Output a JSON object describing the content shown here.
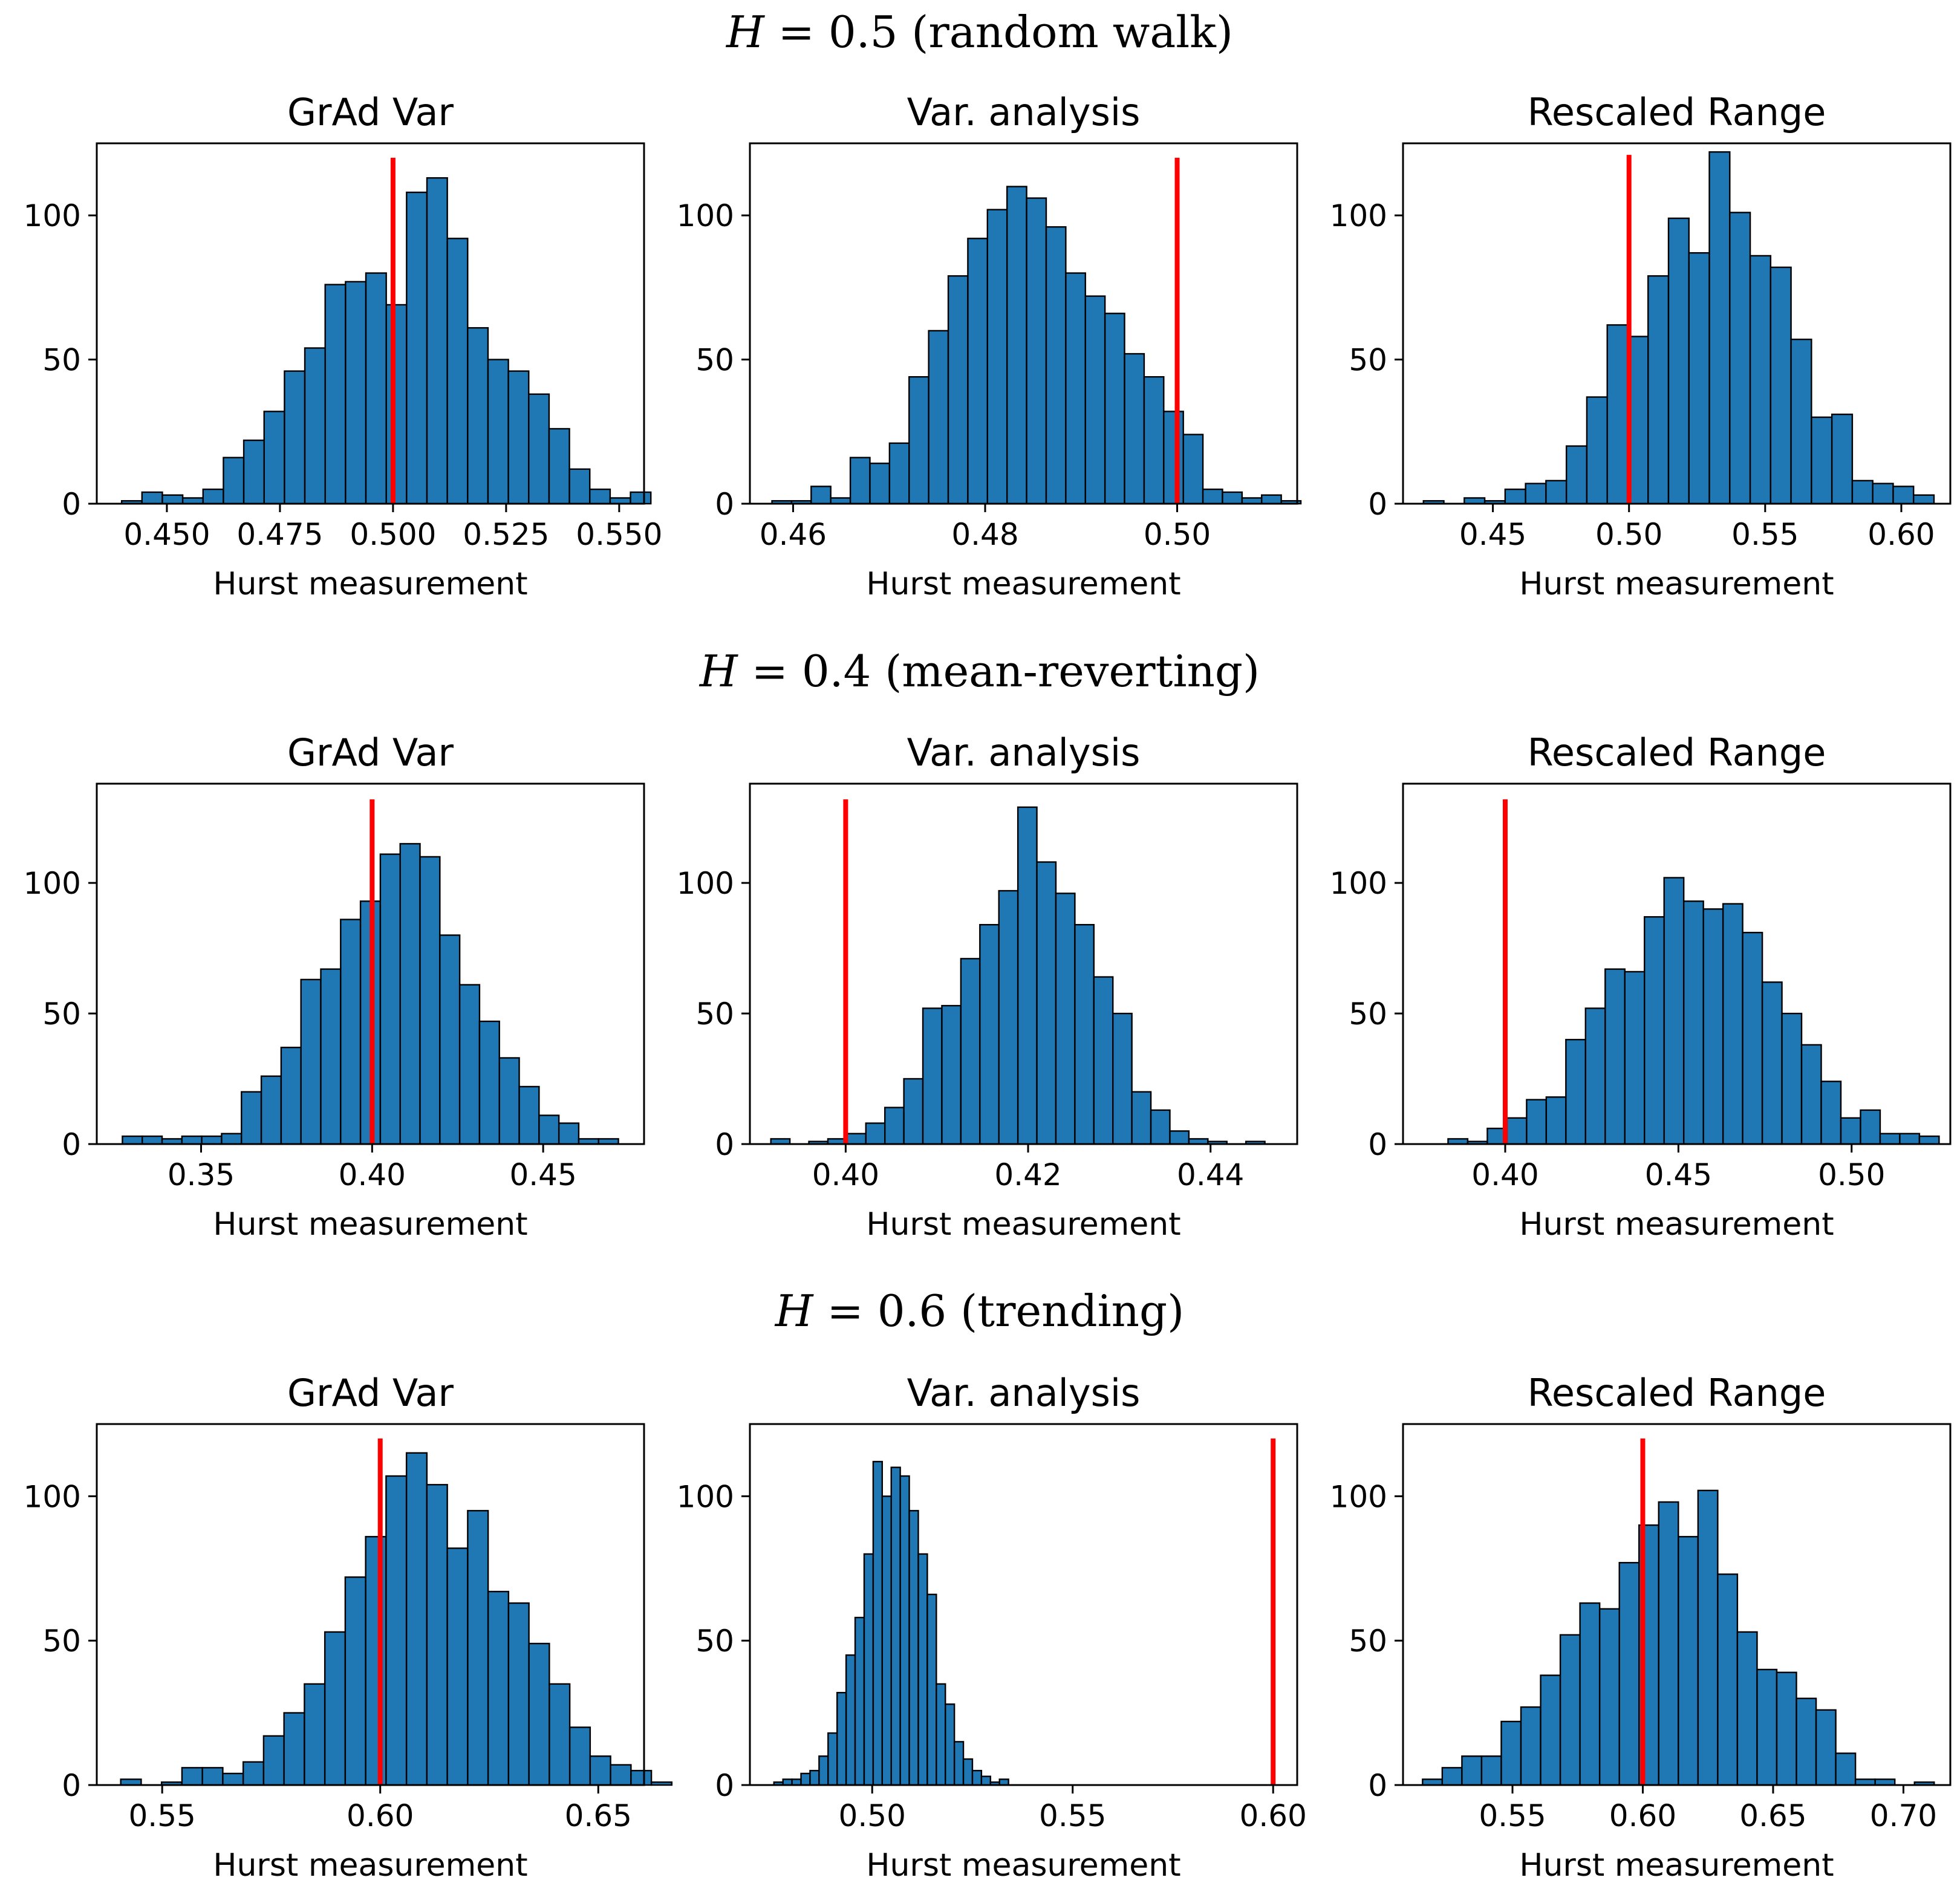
{
  "colors": {
    "bar_fill": "#1f77b4",
    "bar_edge": "#000000",
    "true_line": "#ff0000"
  },
  "rows": [
    {
      "title": "H = 0.5 (random walk)",
      "h_symbol": "H",
      "h_rest": " = 0.5 (random walk)"
    },
    {
      "title": "H = 0.4 (mean-reverting)",
      "h_symbol": "H",
      "h_rest": " = 0.4 (mean-reverting)"
    },
    {
      "title": "H = 0.6 (trending)",
      "h_symbol": "H",
      "h_rest": " = 0.6 (trending)"
    }
  ],
  "chart_data": [
    {
      "type": "bar",
      "title": "GrAd Var",
      "xlabel": "Hurst measurement",
      "ylabel": "",
      "row": 0,
      "col": 0,
      "xlim": [
        0.4345,
        0.5555
      ],
      "ylim": [
        0,
        125
      ],
      "xticks": [
        0.45,
        0.475,
        0.5,
        0.525,
        0.55
      ],
      "xtick_labels": [
        "0.450",
        "0.475",
        "0.500",
        "0.525",
        "0.550"
      ],
      "yticks": [
        0,
        50,
        100
      ],
      "ytick_labels": [
        "0",
        "50",
        "100"
      ],
      "true_h": 0.5,
      "true_line_top": 120,
      "bin_start": 0.44,
      "bin_width": 0.0045,
      "values": [
        1,
        4,
        3,
        2,
        5,
        16,
        22,
        32,
        46,
        54,
        76,
        77,
        80,
        69,
        108,
        113,
        92,
        61,
        50,
        46,
        38,
        26,
        12,
        5,
        2,
        4
      ]
    },
    {
      "type": "bar",
      "title": "Var. analysis",
      "xlabel": "Hurst measurement",
      "ylabel": "",
      "row": 0,
      "col": 1,
      "xlim": [
        0.4555,
        0.5125
      ],
      "ylim": [
        0,
        125
      ],
      "xticks": [
        0.46,
        0.48,
        0.5
      ],
      "xtick_labels": [
        "0.46",
        "0.48",
        "0.50"
      ],
      "yticks": [
        0,
        50,
        100
      ],
      "ytick_labels": [
        "0",
        "50",
        "100"
      ],
      "true_h": 0.5,
      "true_line_top": 120,
      "bin_start": 0.4578,
      "bin_width": 0.00204,
      "values": [
        1,
        1,
        6,
        2,
        16,
        14,
        21,
        44,
        60,
        79,
        92,
        102,
        110,
        106,
        96,
        80,
        72,
        66,
        52,
        44,
        32,
        24,
        5,
        4,
        2,
        3,
        1
      ]
    },
    {
      "type": "bar",
      "title": "Rescaled Range",
      "xlabel": "Hurst measurement",
      "ylabel": "",
      "row": 0,
      "col": 2,
      "xlim": [
        0.417,
        0.618
      ],
      "ylim": [
        0,
        125
      ],
      "xticks": [
        0.45,
        0.5,
        0.55,
        0.6
      ],
      "xtick_labels": [
        "0.45",
        "0.50",
        "0.55",
        "0.60"
      ],
      "yticks": [
        0,
        50,
        100
      ],
      "ytick_labels": [
        "0",
        "50",
        "100"
      ],
      "true_h": 0.5,
      "true_line_top": 121,
      "bin_start": 0.4245,
      "bin_width": 0.0075,
      "values": [
        1,
        0,
        2,
        1,
        5,
        7,
        8,
        20,
        37,
        62,
        58,
        79,
        99,
        87,
        122,
        101,
        86,
        82,
        57,
        30,
        31,
        8,
        7,
        6,
        3
      ]
    },
    {
      "type": "bar",
      "title": "GrAd Var",
      "xlabel": "Hurst measurement",
      "ylabel": "",
      "row": 1,
      "col": 0,
      "xlim": [
        0.3195,
        0.4795
      ],
      "ylim": [
        0,
        138
      ],
      "xticks": [
        0.35,
        0.4,
        0.45
      ],
      "xtick_labels": [
        "0.35",
        "0.40",
        "0.45"
      ],
      "yticks": [
        0,
        50,
        100
      ],
      "ytick_labels": [
        "0",
        "50",
        "100"
      ],
      "true_h": 0.4,
      "true_line_top": 132,
      "bin_start": 0.327,
      "bin_width": 0.0058,
      "values": [
        3,
        3,
        2,
        3,
        3,
        4,
        20,
        26,
        37,
        63,
        67,
        86,
        93,
        111,
        115,
        110,
        80,
        61,
        47,
        33,
        22,
        11,
        8,
        2,
        2
      ]
    },
    {
      "type": "bar",
      "title": "Var. analysis",
      "xlabel": "Hurst measurement",
      "ylabel": "",
      "row": 1,
      "col": 1,
      "xlim": [
        0.3895,
        0.4495
      ],
      "ylim": [
        0,
        138
      ],
      "xticks": [
        0.4,
        0.42,
        0.44
      ],
      "xtick_labels": [
        "0.40",
        "0.42",
        "0.44"
      ],
      "yticks": [
        0,
        50,
        100
      ],
      "ytick_labels": [
        "0",
        "50",
        "100"
      ],
      "true_h": 0.4,
      "true_line_top": 132,
      "bin_start": 0.3918,
      "bin_width": 0.002083,
      "values": [
        2,
        0,
        1,
        2,
        4,
        8,
        14,
        25,
        52,
        53,
        71,
        84,
        97,
        129,
        108,
        96,
        84,
        64,
        50,
        20,
        13,
        5,
        2,
        1,
        0,
        1
      ]
    },
    {
      "type": "bar",
      "title": "Rescaled Range",
      "xlabel": "Hurst measurement",
      "ylabel": "",
      "row": 1,
      "col": 2,
      "xlim": [
        0.3705,
        0.5285
      ],
      "ylim": [
        0,
        138
      ],
      "xticks": [
        0.4,
        0.45,
        0.5
      ],
      "xtick_labels": [
        "0.40",
        "0.45",
        "0.50"
      ],
      "yticks": [
        0,
        50,
        100
      ],
      "ytick_labels": [
        "0",
        "50",
        "100"
      ],
      "true_h": 0.4,
      "true_line_top": 132,
      "bin_start": 0.3835,
      "bin_width": 0.00567,
      "values": [
        2,
        1,
        6,
        10,
        17,
        18,
        40,
        52,
        67,
        66,
        87,
        102,
        93,
        90,
        92,
        81,
        62,
        50,
        38,
        24,
        10,
        13,
        4,
        4,
        3
      ]
    },
    {
      "type": "bar",
      "title": "GrAd Var",
      "xlabel": "Hurst measurement",
      "ylabel": "",
      "row": 2,
      "col": 0,
      "xlim": [
        0.535,
        0.6605
      ],
      "ylim": [
        0,
        125
      ],
      "xticks": [
        0.55,
        0.6,
        0.65
      ],
      "xtick_labels": [
        "0.55",
        "0.60",
        "0.65"
      ],
      "yticks": [
        0,
        50,
        100
      ],
      "ytick_labels": [
        "0",
        "50",
        "100"
      ],
      "true_h": 0.6,
      "true_line_top": 120,
      "bin_start": 0.5405,
      "bin_width": 0.00468,
      "values": [
        2,
        0,
        1,
        6,
        6,
        4,
        8,
        17,
        25,
        35,
        53,
        72,
        86,
        107,
        115,
        104,
        82,
        95,
        67,
        63,
        49,
        35,
        20,
        10,
        7,
        5,
        1
      ]
    },
    {
      "type": "bar",
      "title": "Var. analysis",
      "xlabel": "Hurst measurement",
      "ylabel": "",
      "row": 2,
      "col": 1,
      "xlim": [
        0.4695,
        0.606
      ],
      "ylim": [
        0,
        125
      ],
      "xticks": [
        0.5,
        0.55,
        0.6
      ],
      "xtick_labels": [
        "0.50",
        "0.55",
        "0.60"
      ],
      "yticks": [
        0,
        50,
        100
      ],
      "ytick_labels": [
        "0",
        "50",
        "100"
      ],
      "true_h": 0.6,
      "true_line_top": 120,
      "bin_start": 0.4755,
      "bin_width": 0.00225,
      "values": [
        1,
        2,
        2,
        4,
        5,
        10,
        18,
        32,
        45,
        58,
        80,
        112,
        100,
        110,
        107,
        95,
        80,
        66,
        35,
        28,
        15,
        9,
        5,
        3,
        1,
        2,
        0
      ]
    },
    {
      "type": "bar",
      "title": "Rescaled Range",
      "xlabel": "Hurst measurement",
      "ylabel": "",
      "row": 2,
      "col": 2,
      "xlim": [
        0.508,
        0.718
      ],
      "ylim": [
        0,
        125
      ],
      "xticks": [
        0.55,
        0.6,
        0.65,
        0.7
      ],
      "xtick_labels": [
        "0.55",
        "0.60",
        "0.65",
        "0.70"
      ],
      "yticks": [
        0,
        50,
        100
      ],
      "ytick_labels": [
        "0",
        "50",
        "100"
      ],
      "true_h": 0.6,
      "true_line_top": 120,
      "bin_start": 0.5155,
      "bin_width": 0.00755,
      "values": [
        2,
        6,
        10,
        10,
        22,
        27,
        38,
        52,
        63,
        61,
        77,
        90,
        98,
        86,
        102,
        73,
        53,
        40,
        39,
        30,
        26,
        11,
        2,
        2,
        0,
        1
      ]
    }
  ]
}
